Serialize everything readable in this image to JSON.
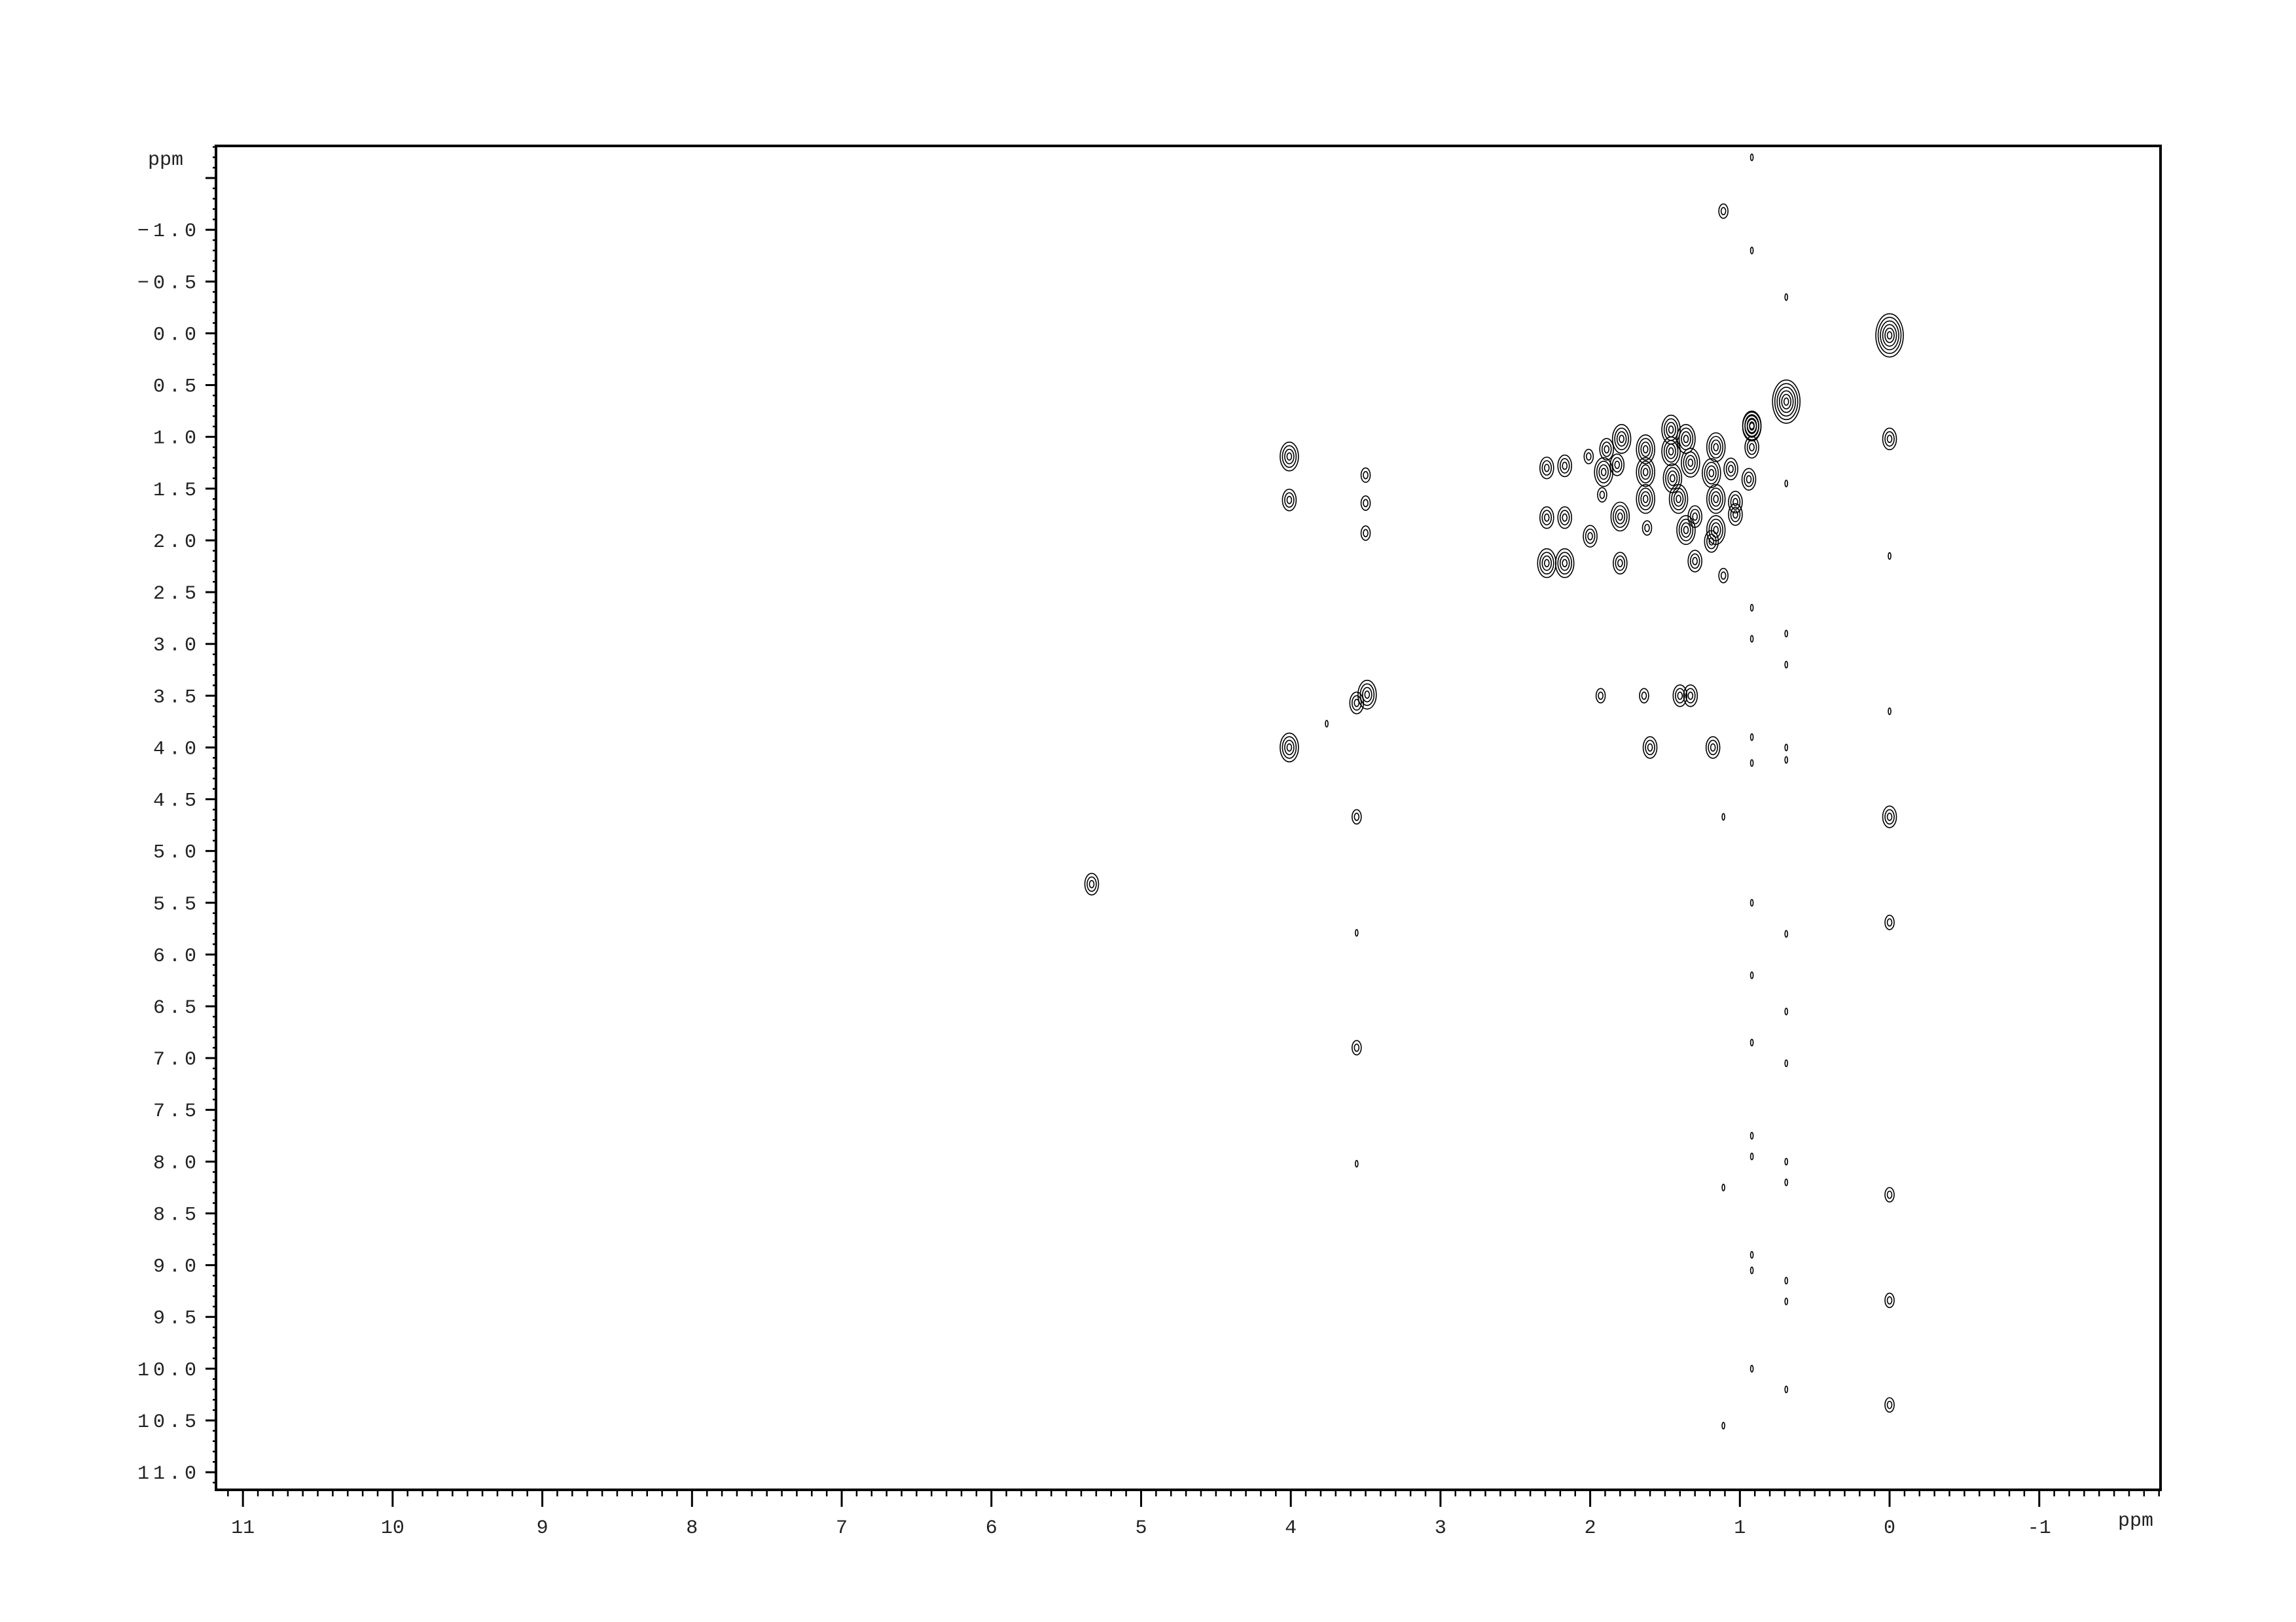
{
  "chart_data": {
    "type": "contour",
    "title": "",
    "xlabel": "ppm",
    "ylabel": "ppm",
    "xlim": [
      11.18,
      -1.81
    ],
    "ylim": [
      -1.81,
      11.17
    ],
    "x_ticks": [
      "11",
      "10",
      "9",
      "8",
      "7",
      "6",
      "5",
      "4",
      "3",
      "2",
      "1",
      "0",
      "-1"
    ],
    "x_tick_values": [
      11,
      10,
      9,
      8,
      7,
      6,
      5,
      4,
      3,
      2,
      1,
      0,
      -1
    ],
    "y_ticks": [
      "-1.0",
      "-0.5",
      "0.0",
      "0.5",
      "1.0",
      "1.5",
      "2.0",
      "2.5",
      "3.0",
      "3.5",
      "4.0",
      "4.5",
      "5.0",
      "5.5",
      "6.0",
      "6.5",
      "7.0",
      "7.5",
      "8.0",
      "8.5",
      "9.0",
      "9.5",
      "10.0",
      "10.5",
      "11.0"
    ],
    "y_tick_values": [
      -1.0,
      -0.5,
      0.0,
      0.5,
      1.0,
      1.5,
      2.0,
      2.5,
      3.0,
      3.5,
      4.0,
      4.5,
      5.0,
      5.5,
      6.0,
      6.5,
      7.0,
      7.5,
      8.0,
      8.5,
      9.0,
      9.5,
      10.0,
      10.5,
      11.0
    ],
    "contour_color": "#000000",
    "grid": false,
    "peak_fields": [
      "x_ppm",
      "y_ppm",
      "contour_levels"
    ],
    "peaks": [
      [
        0,
        0.02,
        6
      ],
      [
        0.69,
        0.66,
        6
      ],
      [
        0.92,
        0.9,
        4
      ],
      [
        1.11,
        -1.18,
        2
      ],
      [
        0,
        1.02,
        3
      ],
      [
        4.01,
        1.19,
        4
      ],
      [
        4.01,
        1.61,
        3
      ],
      [
        3.5,
        1.37,
        2
      ],
      [
        3.5,
        1.64,
        2
      ],
      [
        3.5,
        1.93,
        2
      ],
      [
        2.29,
        1.3,
        3
      ],
      [
        2.17,
        1.28,
        3
      ],
      [
        2.29,
        1.78,
        3
      ],
      [
        2.17,
        1.78,
        3
      ],
      [
        2.29,
        2.22,
        4
      ],
      [
        2.17,
        2.22,
        4
      ],
      [
        1.8,
        2.22,
        3
      ],
      [
        1.3,
        2.2,
        3
      ],
      [
        1.11,
        2.34,
        2
      ],
      [
        1.79,
        1.02,
        4
      ],
      [
        1.89,
        1.12,
        3
      ],
      [
        2.01,
        1.19,
        2
      ],
      [
        1.63,
        1.12,
        4
      ],
      [
        1.46,
        0.93,
        4
      ],
      [
        1.36,
        1.02,
        4
      ],
      [
        1.63,
        1.34,
        4
      ],
      [
        1.91,
        1.34,
        4
      ],
      [
        1.82,
        1.27,
        3
      ],
      [
        1.46,
        1.14,
        4
      ],
      [
        1.16,
        1.1,
        4
      ],
      [
        0.92,
        0.89,
        4
      ],
      [
        1.63,
        1.6,
        4
      ],
      [
        1.41,
        1.6,
        4
      ],
      [
        1.16,
        1.6,
        4
      ],
      [
        1.03,
        1.63,
        3
      ],
      [
        1.03,
        1.75,
        3
      ],
      [
        1.16,
        1.9,
        4
      ],
      [
        1.19,
        2.01,
        3
      ],
      [
        1.36,
        1.9,
        4
      ],
      [
        1.3,
        1.77,
        3
      ],
      [
        1.8,
        1.77,
        4
      ],
      [
        2.0,
        1.96,
        3
      ],
      [
        1.92,
        1.56,
        2
      ],
      [
        1.62,
        1.88,
        2
      ],
      [
        1.45,
        1.4,
        4
      ],
      [
        1.33,
        1.25,
        4
      ],
      [
        1.19,
        1.35,
        4
      ],
      [
        1.06,
        1.31,
        3
      ],
      [
        0.94,
        1.41,
        3
      ],
      [
        0.92,
        1.1,
        3
      ],
      [
        1.93,
        3.5,
        2
      ],
      [
        1.64,
        3.5,
        2
      ],
      [
        1.4,
        3.5,
        3
      ],
      [
        1.33,
        3.5,
        3
      ],
      [
        1.6,
        4.0,
        3
      ],
      [
        1.18,
        4.0,
        3
      ],
      [
        3.49,
        3.49,
        4
      ],
      [
        3.56,
        3.57,
        3
      ],
      [
        4.01,
        4.0,
        4
      ],
      [
        3.76,
        3.77,
        1
      ],
      [
        5.33,
        5.32,
        3
      ],
      [
        3.56,
        4.67,
        2
      ],
      [
        1.11,
        4.67,
        1
      ],
      [
        0,
        4.67,
        3
      ],
      [
        3.56,
        5.79,
        1
      ],
      [
        0,
        5.69,
        2
      ],
      [
        3.56,
        6.9,
        2
      ],
      [
        3.56,
        8.02,
        1
      ],
      [
        0,
        8.32,
        2
      ],
      [
        0,
        9.34,
        2
      ],
      [
        0,
        10.35,
        2
      ],
      [
        1.11,
        8.25,
        1
      ],
      [
        1.11,
        10.55,
        1
      ],
      [
        0,
        3.65,
        1
      ],
      [
        0,
        2.15,
        1
      ],
      [
        0.92,
        2.65,
        1
      ],
      [
        0.92,
        2.95,
        1
      ],
      [
        0.92,
        6.85,
        1
      ],
      [
        0.92,
        7.75,
        1
      ],
      [
        0.92,
        7.95,
        1
      ],
      [
        0.92,
        8.9,
        1
      ],
      [
        0.92,
        9.05,
        1
      ],
      [
        0.92,
        10.0,
        1
      ],
      [
        0.92,
        -1.7,
        1
      ],
      [
        0.92,
        -0.8,
        1
      ],
      [
        0.92,
        5.5,
        1
      ],
      [
        0.92,
        6.2,
        1
      ],
      [
        0.92,
        3.9,
        1
      ],
      [
        0.92,
        4.15,
        1
      ],
      [
        0.69,
        -0.35,
        1
      ],
      [
        0.69,
        1.45,
        1
      ],
      [
        0.69,
        2.9,
        1
      ],
      [
        0.69,
        3.2,
        1
      ],
      [
        0.69,
        4.0,
        1
      ],
      [
        0.69,
        4.12,
        1
      ],
      [
        0.69,
        5.8,
        1
      ],
      [
        0.69,
        6.55,
        1
      ],
      [
        0.69,
        7.05,
        1
      ],
      [
        0.69,
        8.0,
        1
      ],
      [
        0.69,
        8.2,
        1
      ],
      [
        0.69,
        9.15,
        1
      ],
      [
        0.69,
        9.35,
        1
      ],
      [
        0.69,
        10.2,
        1
      ]
    ]
  }
}
